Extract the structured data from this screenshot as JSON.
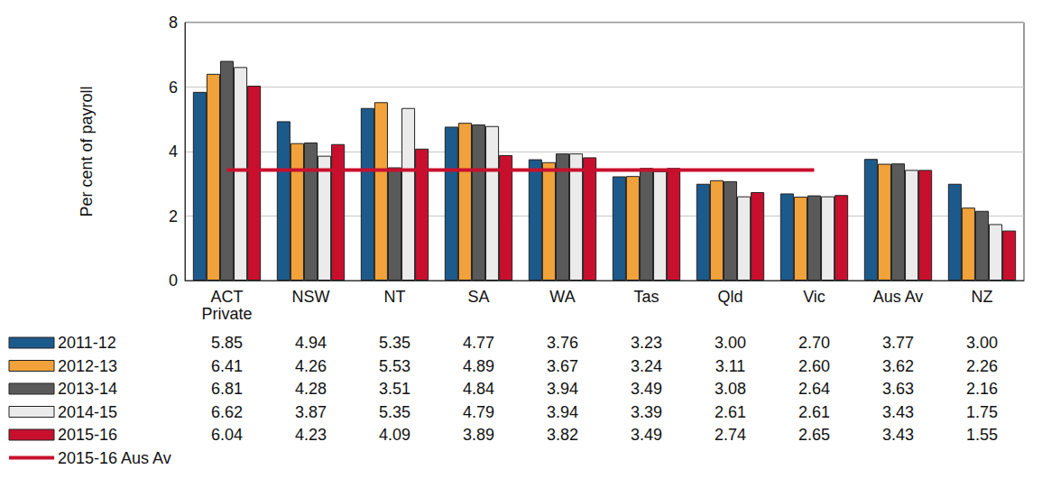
{
  "chart_data": {
    "type": "bar",
    "y_label": "Per cent of payroll",
    "categories": [
      "ACT\nPrivate",
      "NSW",
      "NT",
      "SA",
      "WA",
      "Tas",
      "Qld",
      "Vic",
      "Aus Av",
      "NZ"
    ],
    "ylim": [
      0,
      8
    ],
    "yticks": [
      0,
      2,
      4,
      6,
      8
    ],
    "grid": true,
    "series": [
      {
        "name": "2011-12",
        "color": "#1d5a8c",
        "values": [
          5.85,
          4.94,
          5.35,
          4.77,
          3.76,
          3.23,
          3.0,
          2.7,
          3.77,
          3.0
        ],
        "value_labels": [
          "5.85",
          "4.94",
          "5.35",
          "4.77",
          "3.76",
          "3.23",
          "3.00",
          "2.70",
          "3.77",
          "3.00"
        ]
      },
      {
        "name": "2012-13",
        "color": "#f2a23a",
        "values": [
          6.41,
          4.26,
          5.53,
          4.89,
          3.67,
          3.24,
          3.11,
          2.6,
          3.62,
          2.26
        ],
        "value_labels": [
          "6.41",
          "4.26",
          "5.53",
          "4.89",
          "3.67",
          "3.24",
          "3.11",
          "2.60",
          "3.62",
          "2.26"
        ]
      },
      {
        "name": "2013-14",
        "color": "#5a5a5a",
        "values": [
          6.81,
          4.28,
          3.51,
          4.84,
          3.94,
          3.49,
          3.08,
          2.64,
          3.63,
          2.16
        ],
        "value_labels": [
          "6.81",
          "4.28",
          "3.51",
          "4.84",
          "3.94",
          "3.49",
          "3.08",
          "2.64",
          "3.63",
          "2.16"
        ]
      },
      {
        "name": "2014-15",
        "color": "#ebebeb",
        "values": [
          6.62,
          3.87,
          5.35,
          4.79,
          3.94,
          3.39,
          2.61,
          2.61,
          3.43,
          1.75
        ],
        "value_labels": [
          "6.62",
          "3.87",
          "5.35",
          "4.79",
          "3.94",
          "3.39",
          "2.61",
          "2.61",
          "3.43",
          "1.75"
        ]
      },
      {
        "name": "2015-16",
        "color": "#c8102e",
        "values": [
          6.04,
          4.23,
          4.09,
          3.89,
          3.82,
          3.49,
          2.74,
          2.65,
          3.43,
          1.55
        ],
        "value_labels": [
          "6.04",
          "4.23",
          "4.09",
          "3.89",
          "3.82",
          "3.49",
          "2.74",
          "2.65",
          "3.43",
          "1.55"
        ]
      },
      {
        "name": "2015-16 Aus Av",
        "type": "line",
        "color": "#c8102e",
        "values": [
          3.43,
          3.43,
          3.43,
          3.43,
          3.43,
          3.43,
          3.43,
          3.43,
          null,
          null
        ]
      }
    ]
  }
}
